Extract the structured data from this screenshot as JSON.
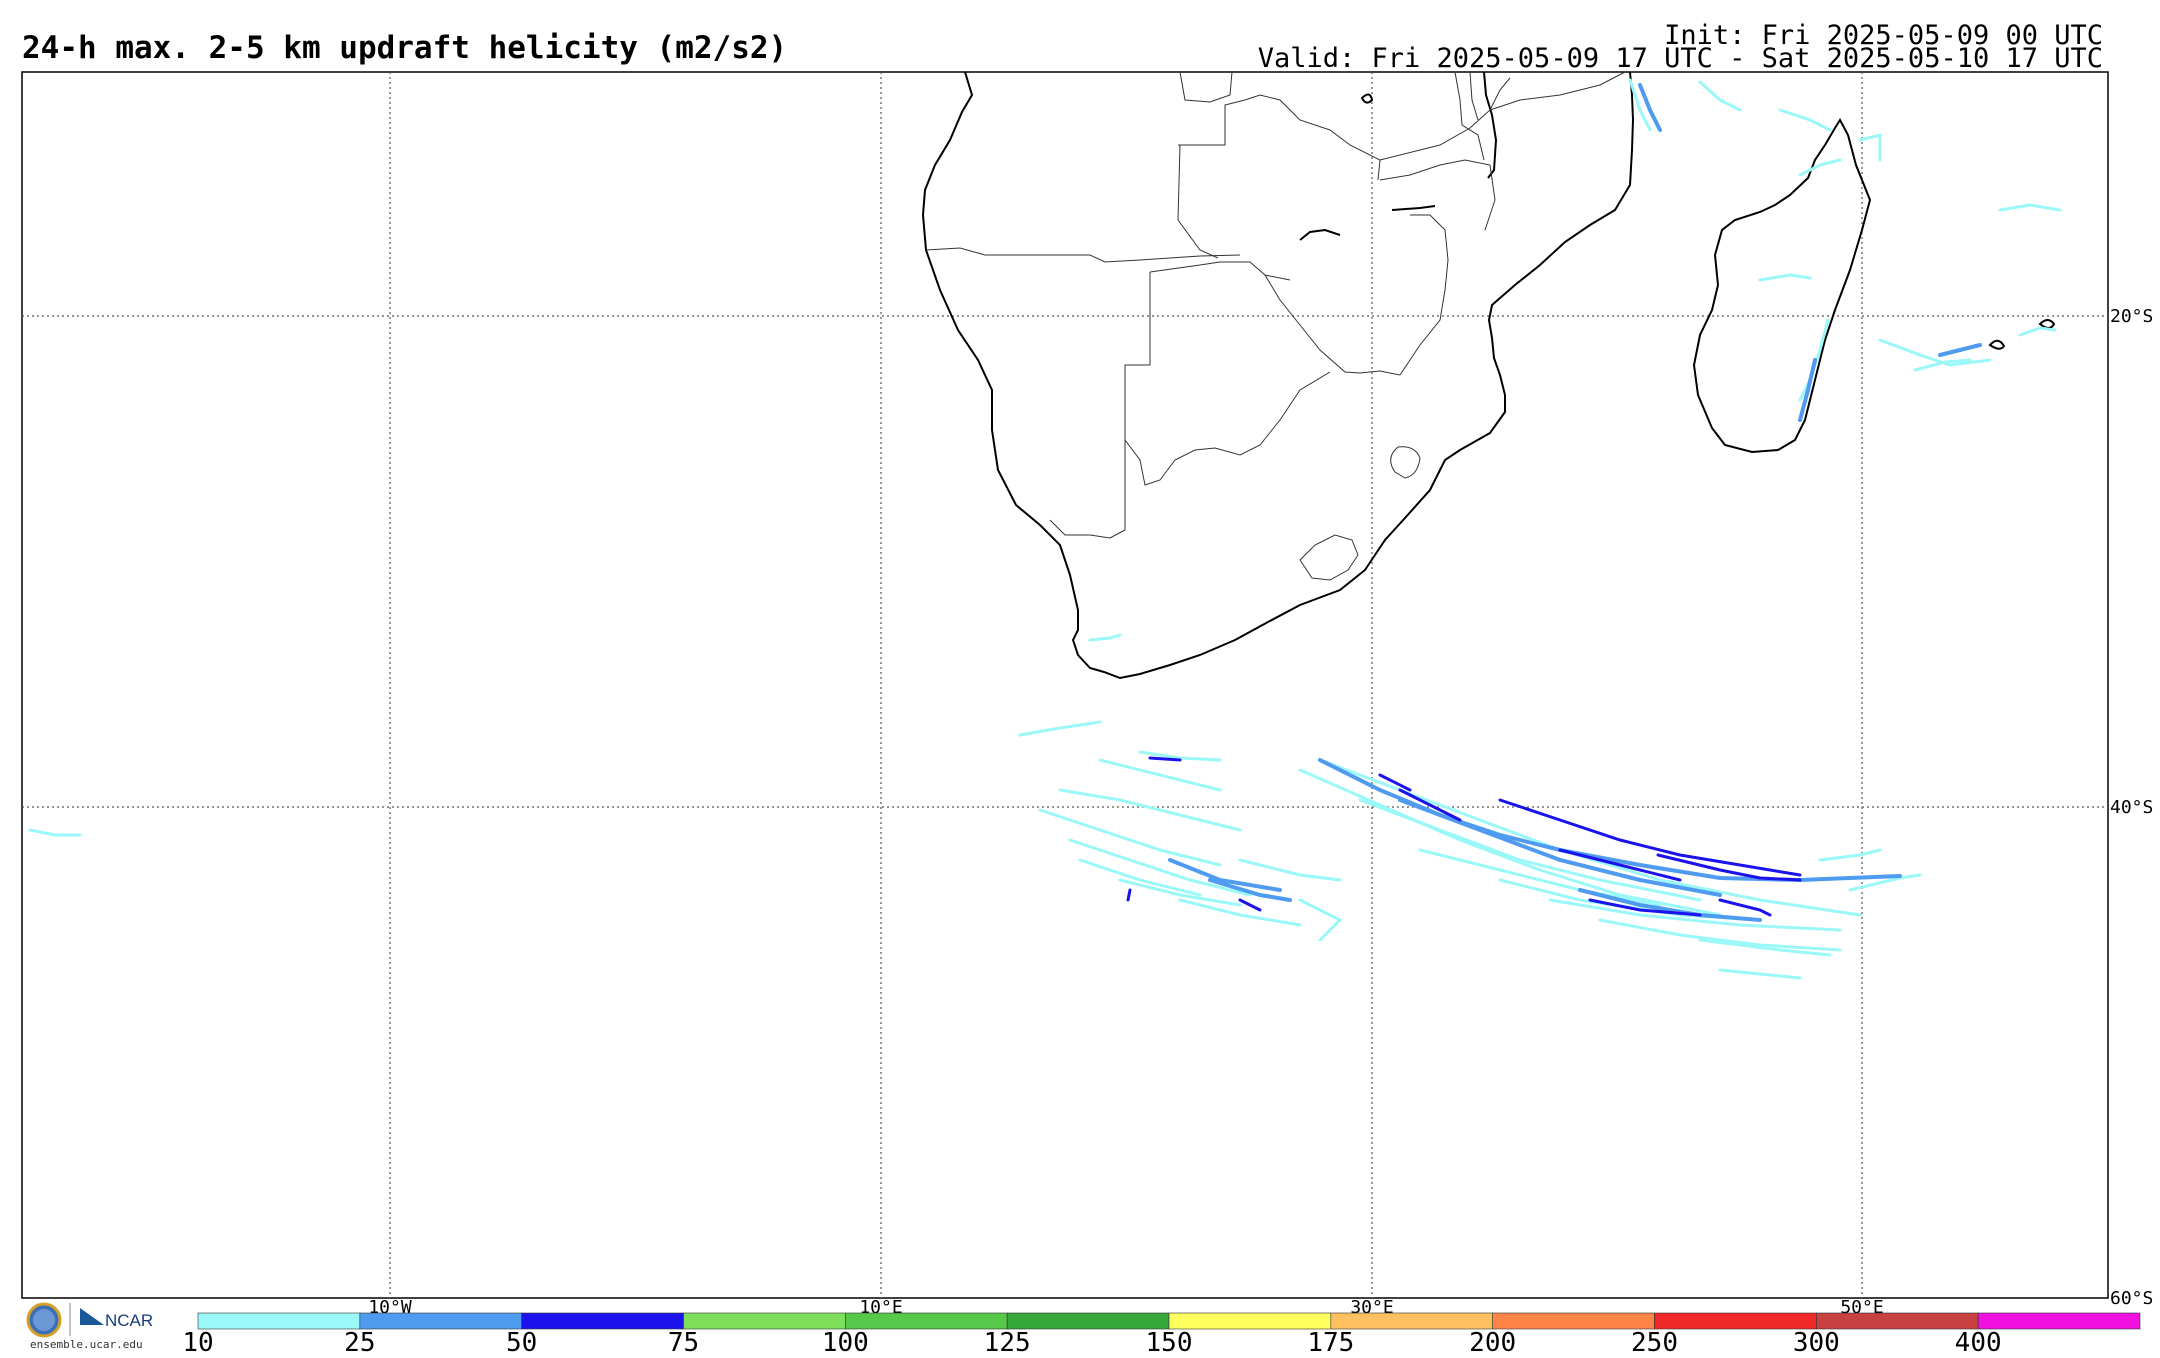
{
  "header": {
    "title": "24-h max. 2-5 km updraft helicity (m2/s2)",
    "init": "Init: Fri 2025-05-09 00 UTC",
    "valid": "Valid: Fri 2025-05-09 17 UTC - Sat 2025-05-10 17 UTC"
  },
  "map": {
    "lon_labels": [
      "10°W",
      "10°E",
      "30°E",
      "50°E"
    ],
    "lat_labels": [
      "20°S",
      "40°S",
      "60°S"
    ]
  },
  "colorbar": {
    "labels": [
      "10",
      "25",
      "50",
      "75",
      "100",
      "125",
      "150",
      "175",
      "200",
      "250",
      "300",
      "400"
    ],
    "colors": [
      "#9bf8f8",
      "#4f9bf0",
      "#1b12ec",
      "#7ee05a",
      "#58c84a",
      "#36a83a",
      "#ffff60",
      "#ffc060",
      "#ff8448",
      "#f02828",
      "#c84040",
      "#f010e0"
    ]
  },
  "logo": {
    "org_text": "NCAR",
    "url": "ensemble.ucar.edu"
  }
}
